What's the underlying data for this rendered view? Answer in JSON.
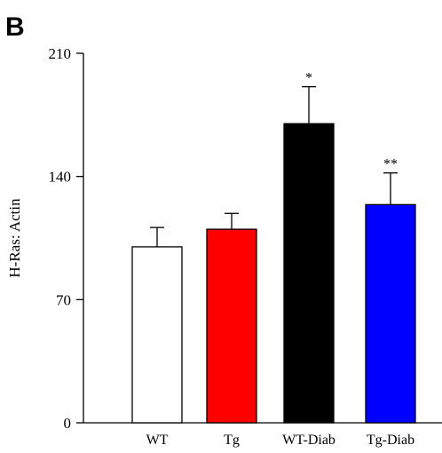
{
  "panel_label": "B",
  "chart_data": {
    "type": "bar",
    "title": "",
    "xlabel": "",
    "ylabel": "H-Ras: Actin",
    "ylim": [
      0,
      210
    ],
    "yticks": [
      0,
      70,
      140,
      210
    ],
    "categories": [
      "WT",
      "Tg",
      "WT-Diab",
      "Tg-Diab"
    ],
    "values": [
      100,
      110,
      170,
      124
    ],
    "errors": [
      11,
      9,
      21,
      18
    ],
    "significance": [
      "",
      "",
      "*",
      "**"
    ],
    "colors": [
      "#ffffff",
      "#ff0000",
      "#000000",
      "#0000ff"
    ],
    "grid": false
  }
}
